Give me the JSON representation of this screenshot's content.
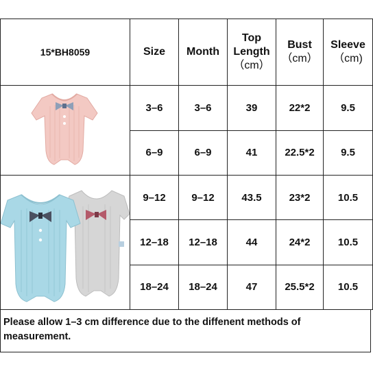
{
  "header": {
    "sku": "15*BH8059",
    "size": "Size",
    "month": "Month",
    "top_length_1": "Top",
    "top_length_2": "Length",
    "top_length_3": "（cm）",
    "bust_1": "Bust",
    "bust_2": "（cm）",
    "sleeve_1": "Sleeve",
    "sleeve_2": "（cm)"
  },
  "rows": [
    {
      "size": "3–6",
      "month": "3–6",
      "top_length": "39",
      "bust": "22*2",
      "sleeve": "9.5"
    },
    {
      "size": "6–9",
      "month": "6–9",
      "top_length": "41",
      "bust": "22.5*2",
      "sleeve": "9.5"
    },
    {
      "size": "9–12",
      "month": "9–12",
      "top_length": "43.5",
      "bust": "23*2",
      "sleeve": "10.5"
    },
    {
      "size": "12–18",
      "month": "12–18",
      "top_length": "44",
      "bust": "24*2",
      "sleeve": "10.5"
    },
    {
      "size": "18–24",
      "month": "18–24",
      "top_length": "47",
      "bust": "25.5*2",
      "sleeve": "10.5"
    }
  ],
  "note": "Please allow 1–3 cm difference due to the diffenent methods of measurement.",
  "colors": {
    "pink": "#f3c9c3",
    "blue": "#a9d8e6",
    "grey": "#d6d6d6",
    "border": "#222222"
  },
  "images": {
    "top_photo": "pink-romper-with-bow-tie",
    "bottom_photo": "blue-and-grey-rompers-with-bow-ties"
  }
}
